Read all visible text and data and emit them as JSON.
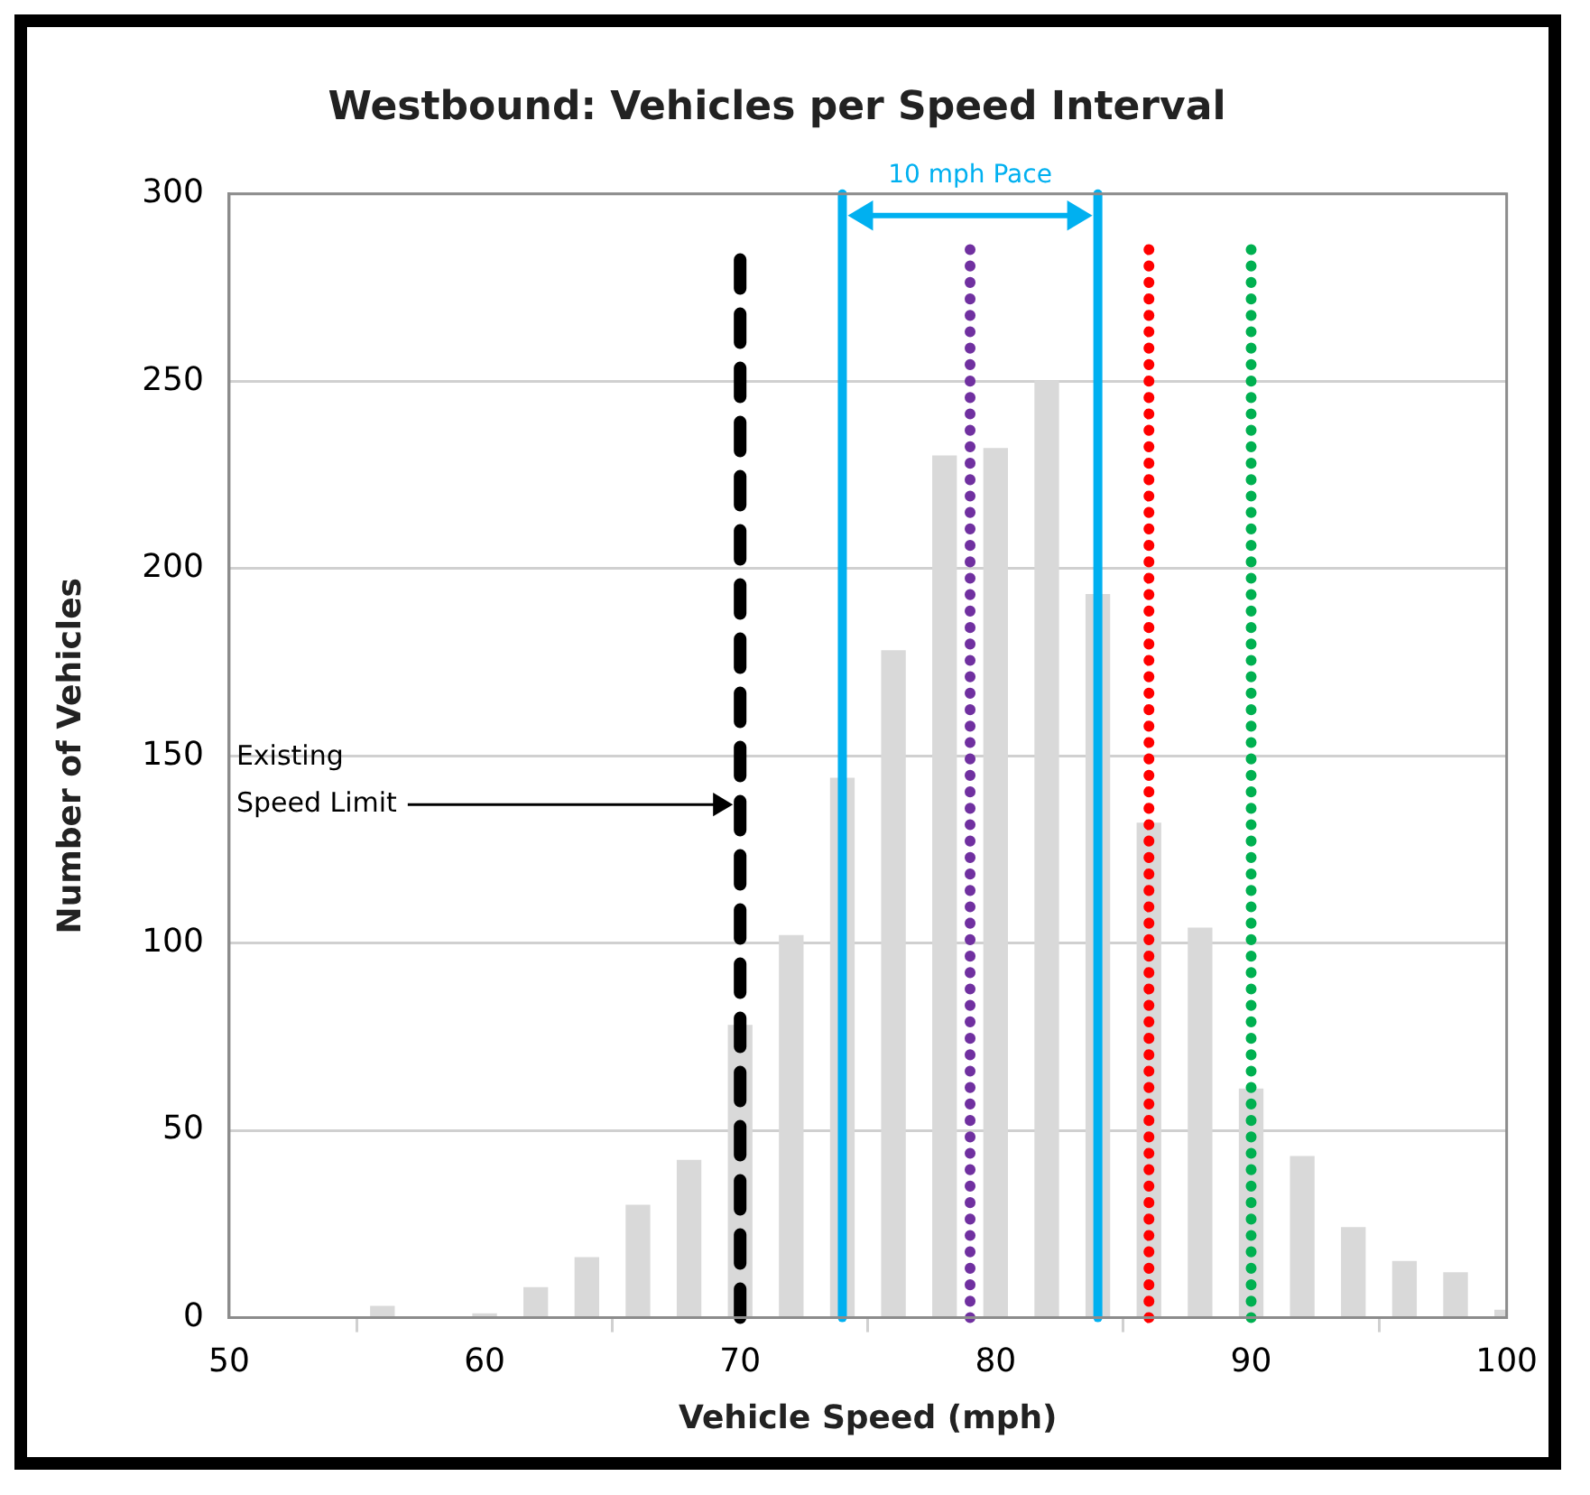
{
  "chart_data": {
    "type": "bar",
    "title": "Westbound: Vehicles per Speed Interval",
    "xlabel": "Vehicle Speed (mph)",
    "ylabel": "Number of Vehicles",
    "x": [
      56,
      58,
      60,
      62,
      64,
      66,
      68,
      70,
      72,
      74,
      76,
      78,
      80,
      82,
      84,
      86,
      88,
      90,
      92,
      94,
      96,
      98,
      100
    ],
    "values": [
      3,
      0,
      1,
      8,
      16,
      30,
      42,
      78,
      102,
      144,
      178,
      230,
      232,
      250,
      193,
      132,
      104,
      61,
      43,
      24,
      15,
      12,
      2
    ],
    "color": "#d9d9d9",
    "xlim": [
      50,
      100
    ],
    "xticks": [
      50,
      60,
      70,
      80,
      90,
      100
    ],
    "ylim": [
      0,
      300
    ],
    "yticks": [
      0,
      50,
      100,
      150,
      200,
      250,
      300
    ],
    "grid": "y",
    "legend": false,
    "ref_lines": [
      {
        "axis": "x",
        "value": 70,
        "label": "Existing Speed Limit",
        "color": "#000000",
        "line_style": "dashed"
      },
      {
        "axis": "x",
        "value": 74,
        "color": "#00b0f0",
        "line_style": "solid"
      },
      {
        "axis": "x",
        "value": 84,
        "color": "#00b0f0",
        "line_style": "solid"
      },
      {
        "axis": "x",
        "value": 79,
        "color": "#7030a0",
        "line_style": "dotted"
      },
      {
        "axis": "x",
        "value": 86,
        "color": "#ff0000",
        "line_style": "dotted"
      },
      {
        "axis": "x",
        "value": 90,
        "color": "#00b050",
        "line_style": "dotted"
      }
    ],
    "annotations": [
      "10 mph Pace"
    ]
  }
}
